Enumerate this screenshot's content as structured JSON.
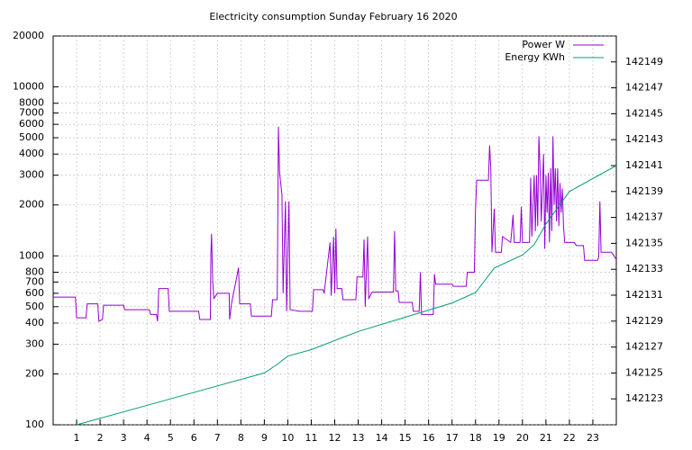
{
  "chart_data": {
    "type": "line",
    "title": "Electricity consumption Sunday February 16 2020",
    "xlim": [
      0,
      24
    ],
    "xticks": [
      1,
      2,
      3,
      4,
      5,
      6,
      7,
      8,
      9,
      10,
      11,
      12,
      13,
      14,
      15,
      16,
      17,
      18,
      19,
      20,
      21,
      22,
      23
    ],
    "ylim": [
      100,
      20000
    ],
    "log_scale": true,
    "yticks": [
      100,
      200,
      300,
      400,
      500,
      600,
      700,
      800,
      1000,
      2000,
      3000,
      4000,
      5000,
      6000,
      7000,
      8000,
      10000,
      20000
    ],
    "y2lim": [
      142121,
      142151
    ],
    "y2ticks": [
      142123,
      142125,
      142127,
      142129,
      142131,
      142133,
      142135,
      142137,
      142139,
      142141,
      142143,
      142145,
      142147,
      142149
    ],
    "grid": true,
    "legend": "upper right",
    "series": [
      {
        "name": "Power W",
        "color": "#9400d3",
        "x": [
          0,
          0.95,
          1.0,
          1.4,
          1.45,
          1.9,
          1.95,
          2.1,
          2.15,
          3.0,
          3.05,
          4.1,
          4.15,
          4.4,
          4.45,
          4.5,
          4.9,
          4.95,
          6.2,
          6.25,
          6.7,
          6.72,
          6.75,
          6.8,
          6.85,
          7.0,
          7.5,
          7.52,
          7.6,
          7.9,
          7.95,
          8.4,
          8.45,
          9.3,
          9.35,
          9.55,
          9.6,
          9.65,
          9.75,
          9.8,
          9.9,
          9.95,
          10.05,
          10.1,
          10.5,
          11.05,
          11.1,
          11.5,
          11.55,
          11.8,
          11.85,
          11.95,
          12.0,
          12.05,
          12.1,
          12.3,
          12.35,
          12.9,
          12.95,
          13.2,
          13.25,
          13.3,
          13.4,
          13.45,
          13.6,
          14.5,
          14.55,
          14.6,
          14.7,
          14.75,
          15.3,
          15.35,
          15.6,
          15.65,
          15.7,
          16.2,
          16.25,
          16.3,
          17.0,
          17.05,
          17.6,
          17.65,
          17.95,
          18.0,
          18.05,
          18.55,
          18.6,
          18.65,
          18.7,
          18.8,
          18.85,
          19.1,
          19.15,
          19.5,
          19.6,
          19.65,
          19.9,
          19.95,
          20.0,
          20.3,
          20.35,
          20.4,
          20.5,
          20.55,
          20.6,
          20.65,
          20.7,
          20.75,
          20.8,
          20.9,
          20.95,
          21.0,
          21.05,
          21.1,
          21.15,
          21.2,
          21.25,
          21.3,
          21.35,
          21.4,
          21.45,
          21.5,
          21.55,
          21.6,
          21.65,
          21.7,
          21.75,
          21.8,
          22.2,
          22.3,
          22.6,
          22.65,
          23.2,
          23.25,
          23.3,
          23.35,
          23.8,
          24.0
        ],
        "values": [
          570,
          570,
          430,
          430,
          520,
          520,
          410,
          420,
          510,
          510,
          480,
          480,
          450,
          450,
          410,
          640,
          640,
          470,
          470,
          420,
          420,
          1000,
          1350,
          700,
          560,
          600,
          600,
          420,
          520,
          850,
          520,
          520,
          440,
          440,
          550,
          550,
          5800,
          3100,
          2300,
          600,
          2100,
          470,
          2100,
          480,
          470,
          470,
          630,
          630,
          600,
          1200,
          580,
          1300,
          600,
          1450,
          640,
          640,
          550,
          550,
          750,
          750,
          1250,
          500,
          1300,
          560,
          610,
          610,
          1400,
          620,
          620,
          530,
          530,
          470,
          470,
          800,
          450,
          450,
          780,
          680,
          680,
          660,
          660,
          800,
          800,
          1900,
          2800,
          2800,
          4500,
          3300,
          1050,
          1900,
          1050,
          1050,
          1300,
          1200,
          1750,
          1200,
          1200,
          1950,
          1200,
          1200,
          2900,
          1300,
          3000,
          1400,
          3000,
          1500,
          5100,
          3300,
          1600,
          4000,
          1100,
          3000,
          1800,
          3100,
          1200,
          3300,
          1400,
          5100,
          2000,
          3300,
          1600,
          3300,
          1500,
          2700,
          1800,
          2500,
          1500,
          1200,
          1200,
          1150,
          1150,
          940,
          940,
          980,
          2100,
          1050,
          1050,
          950
        ]
      },
      {
        "name": "Energy KWh",
        "color": "#009e73",
        "axis": "y2",
        "x": [
          1,
          5,
          9,
          9.5,
          10,
          11,
          13,
          15,
          17,
          18,
          18.8,
          20,
          20.5,
          21,
          22,
          24
        ],
        "values": [
          142121.0,
          142123.0,
          142125.0,
          142125.6,
          142126.3,
          142126.8,
          142128.2,
          142129.3,
          142130.4,
          142131.2,
          142133.1,
          142134.1,
          142134.9,
          142136.5,
          142139.0,
          142141.0
        ]
      }
    ]
  }
}
